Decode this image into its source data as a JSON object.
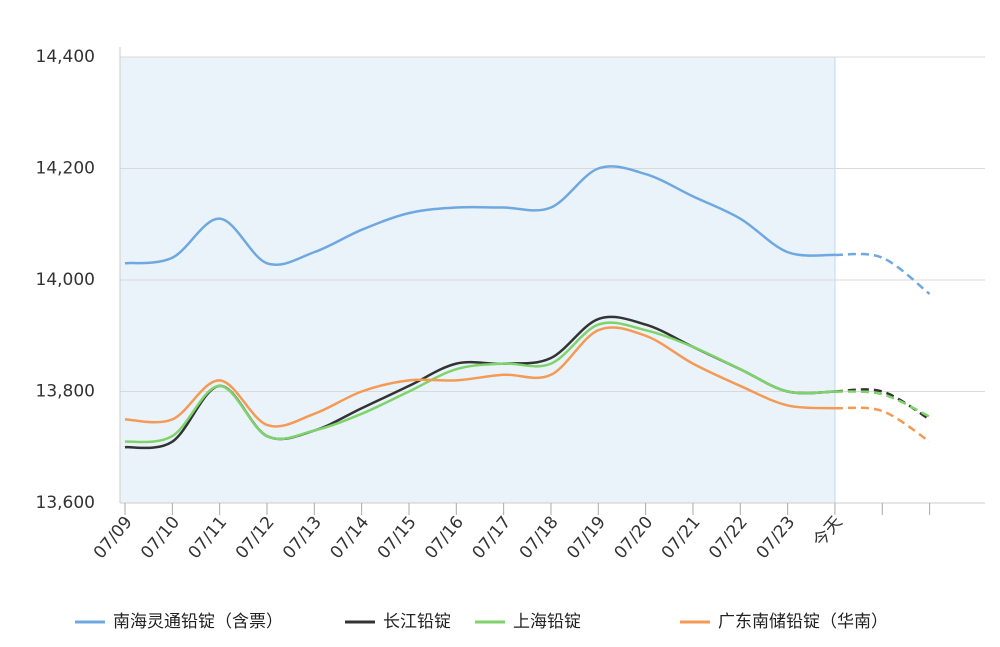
{
  "chart_data": {
    "type": "line",
    "categories": [
      "07/09",
      "07/10",
      "07/11",
      "07/12",
      "07/13",
      "07/14",
      "07/15",
      "07/16",
      "07/17",
      "07/18",
      "07/19",
      "07/20",
      "07/21",
      "07/22",
      "07/23",
      "今天",
      null,
      null
    ],
    "forecast_start_category": "今天",
    "ylim": [
      13600,
      14400
    ],
    "yticks": [
      {
        "value": 13600,
        "label": "13,600"
      },
      {
        "value": 13800,
        "label": "13,800"
      },
      {
        "value": 14000,
        "label": "14,000"
      },
      {
        "value": 14200,
        "label": "14,200"
      },
      {
        "value": 14400,
        "label": "14,400"
      }
    ],
    "grid": true,
    "legend": "bottom",
    "series": [
      {
        "name": "南海灵通铅锭（含票）",
        "color": "#6fa8e0",
        "values": [
          14030,
          14040,
          14110,
          14030,
          14050,
          14090,
          14120,
          14130,
          14130,
          14130,
          14200,
          14190,
          14150,
          14110,
          14050,
          14045,
          14040,
          13975
        ]
      },
      {
        "name": "长江铅锭",
        "color": "#333333",
        "values": [
          13700,
          13710,
          13810,
          13720,
          13730,
          13770,
          13810,
          13850,
          13850,
          13860,
          13930,
          13920,
          13880,
          13840,
          13800,
          13800,
          13800,
          13750
        ]
      },
      {
        "name": "上海铅锭",
        "color": "#7ed36b",
        "values": [
          13710,
          13720,
          13810,
          13720,
          13730,
          13760,
          13800,
          13840,
          13850,
          13850,
          13920,
          13910,
          13880,
          13840,
          13800,
          13800,
          13795,
          13755
        ]
      },
      {
        "name": "广东南储铅锭（华南）",
        "color": "#f59a55",
        "values": [
          13750,
          13750,
          13820,
          13740,
          13760,
          13800,
          13820,
          13820,
          13830,
          13830,
          13910,
          13900,
          13850,
          13810,
          13775,
          13770,
          13765,
          13710
        ]
      }
    ]
  }
}
